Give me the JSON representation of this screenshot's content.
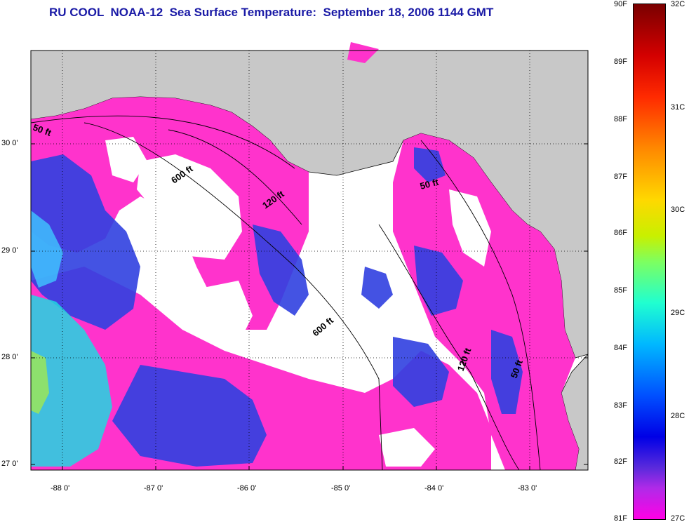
{
  "title": "RU COOL  NOAA-12  Sea Surface Temperature:  September 18, 2006 1144 GMT",
  "map": {
    "lat_labels": [
      "30 0'",
      "29 0'",
      "28 0'",
      "27 0'"
    ],
    "lon_labels": [
      "-88 0'",
      "-87 0'",
      "-86 0'",
      "-85 0'",
      "-84 0'",
      "-83 0'"
    ],
    "isobath_labels": [
      "50 ft",
      "600 ft",
      "120 ft",
      "50 ft",
      "600 ft",
      "120 ft",
      "50 ft"
    ],
    "colors": {
      "land": "#c8c8c8",
      "ocean_cloud": "#ffffff",
      "warm_water": "#ff33cc",
      "cool_water": "#3040e0"
    }
  },
  "colorbar": {
    "fahrenheit_labels": [
      "90F",
      "89F",
      "88F",
      "87F",
      "86F",
      "85F",
      "84F",
      "83F",
      "82F",
      "81F"
    ],
    "celsius_labels": [
      "32C",
      "31C",
      "30C",
      "29C",
      "28C",
      "27C"
    ]
  }
}
